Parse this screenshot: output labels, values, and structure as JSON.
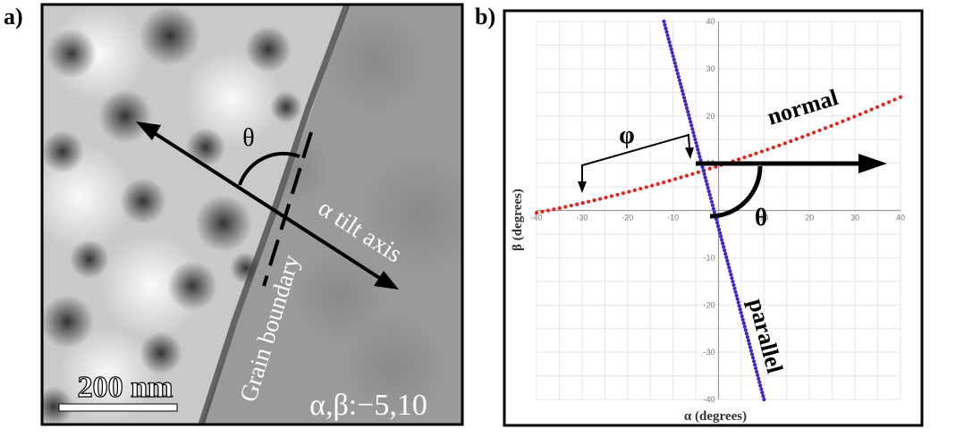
{
  "panel_a": {
    "letter": "a)",
    "angle_label": "θ",
    "tilt_axis_label": "α tilt axis",
    "boundary_label": "Grain boundary",
    "scale_bar_label": "200 nm",
    "tilt_value_label": "α,β:−5,10"
  },
  "panel_b": {
    "letter": "b)",
    "normal_label": "normal",
    "parallel_label": "parallel",
    "phi_label": "φ",
    "theta_label": "θ",
    "colors": {
      "normal": "#e8201a",
      "parallel": "#3a28d8",
      "arrows": "#000000"
    },
    "chart_data": {
      "type": "scatter",
      "xlabel": "α (degrees)",
      "ylabel": "β (degrees)",
      "xlim": [
        -40,
        40
      ],
      "ylim": [
        -40,
        40
      ],
      "x_ticks": [
        -40,
        -30,
        -20,
        -10,
        0,
        10,
        20,
        30,
        40
      ],
      "y_ticks": [
        -40,
        -30,
        -20,
        -10,
        0,
        10,
        20,
        30,
        40
      ],
      "grid": true,
      "series": [
        {
          "name": "normal",
          "color": "#e8201a",
          "x_range": [
            -40,
            40
          ],
          "y_range": [
            -0.5,
            24
          ],
          "points": 64
        },
        {
          "name": "parallel",
          "color": "#3a28d8",
          "x_range": [
            -12,
            10
          ],
          "y_range": [
            40,
            -40
          ],
          "points": 110
        }
      ]
    }
  }
}
